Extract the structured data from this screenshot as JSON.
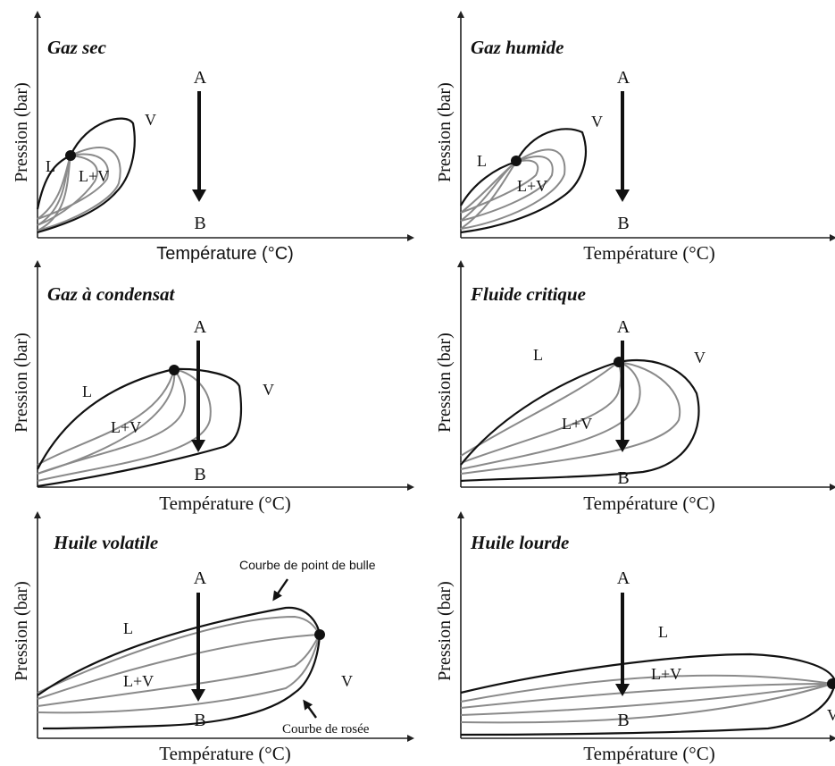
{
  "axis_labels": {
    "y": "Pression (bar)",
    "x": "Température (°C)"
  },
  "points": {
    "a": "A",
    "b": "B"
  },
  "phases": {
    "liquid": "L",
    "vapor": "V",
    "two_phase": "L+V"
  },
  "panels": [
    {
      "id": "gaz-sec",
      "title": "Gaz sec"
    },
    {
      "id": "gaz-humide",
      "title": "Gaz humide"
    },
    {
      "id": "gaz-condensat",
      "title": "Gaz à condensat"
    },
    {
      "id": "fluide-critique",
      "title": "Fluide critique"
    },
    {
      "id": "huile-volatile",
      "title": "Huile volatile"
    },
    {
      "id": "huile-lourde",
      "title": "Huile lourde"
    }
  ],
  "annotations": {
    "bubble_curve": "Courbe de point de bulle",
    "dew_curve": "Courbe de rosée"
  }
}
